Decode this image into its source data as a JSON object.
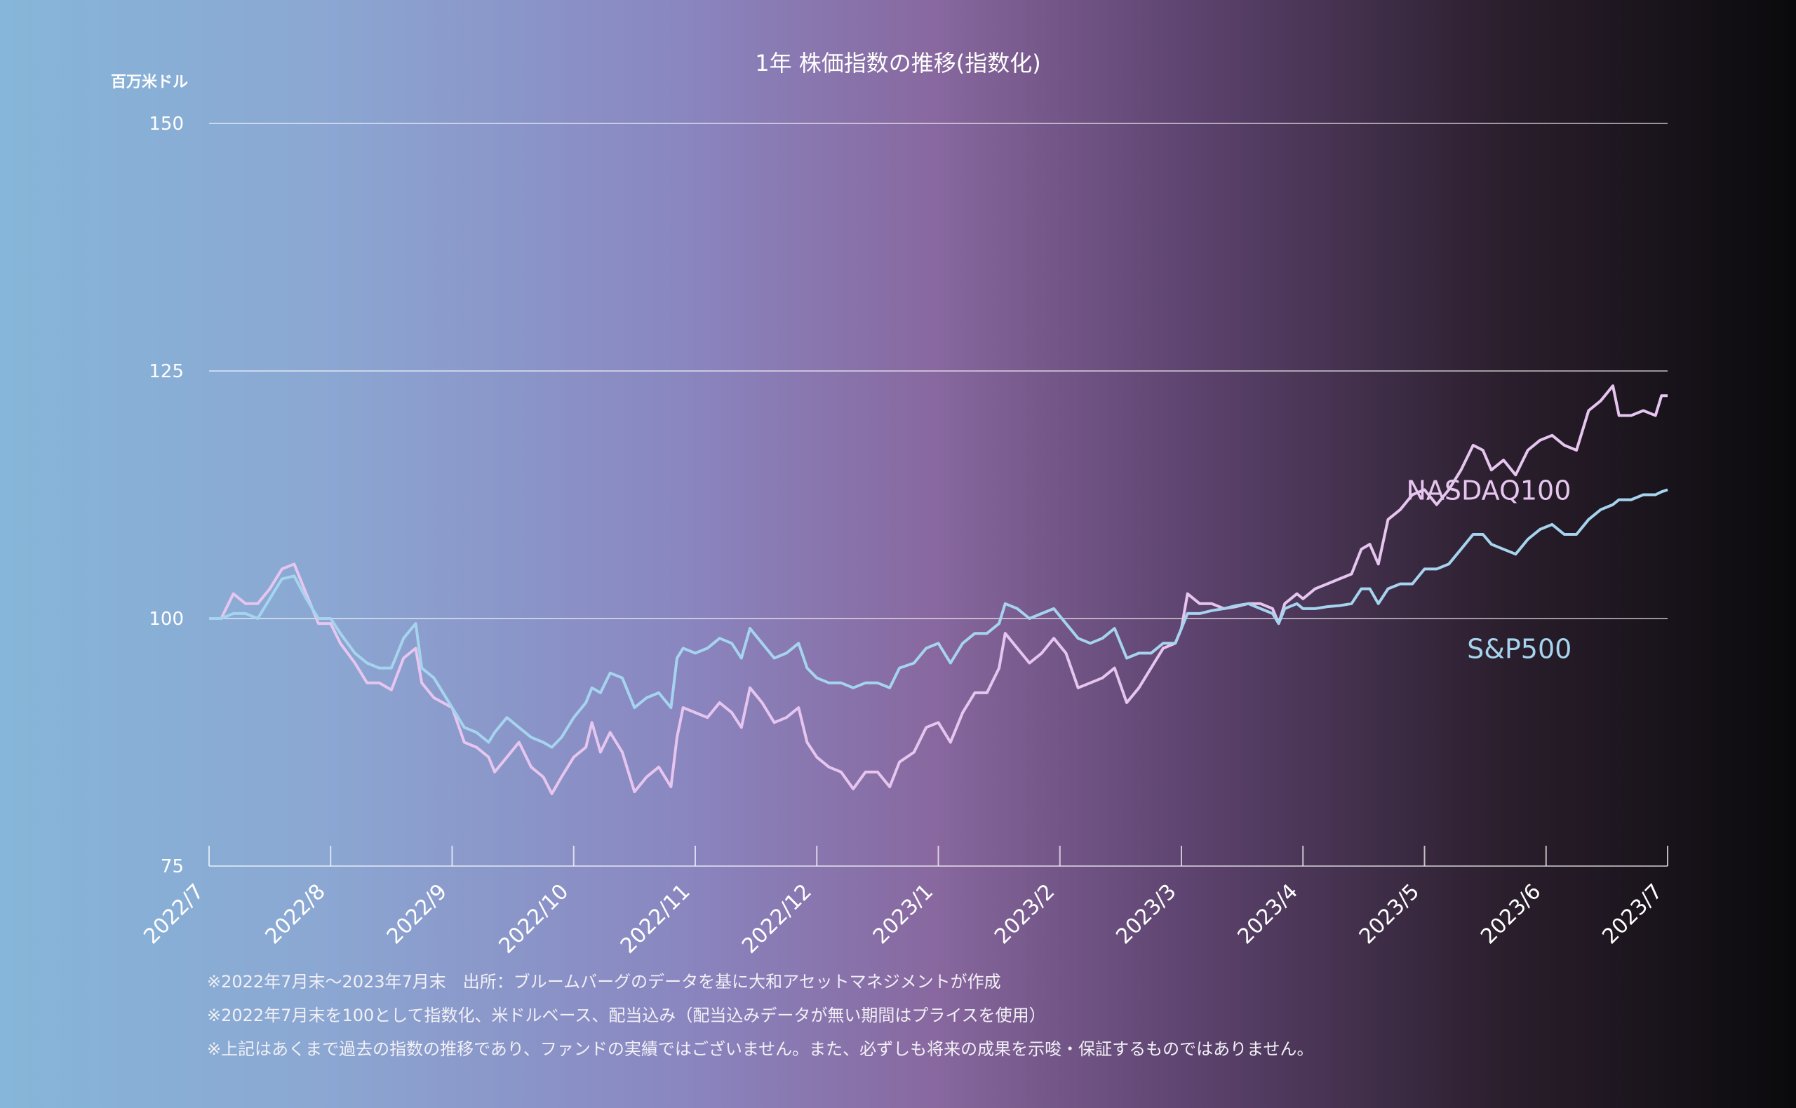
{
  "chart_data": {
    "type": "line",
    "title": "1年 株価指数の推移(指数化)",
    "ylabel": "百万米ドル",
    "ylim": [
      75,
      150
    ],
    "yticks": [
      "75",
      "100",
      "125",
      "150"
    ],
    "x_ticks": [
      "2022/7",
      "2022/8",
      "2022/9",
      "2022/10",
      "2022/11",
      "2022/12",
      "2023/1",
      "2023/2",
      "2023/3",
      "2023/4",
      "2023/5",
      "2023/6",
      "2023/7"
    ],
    "grid": true,
    "colors": {
      "NASDAQ100": "#e6c6ef",
      "S&P500": "#a6d4ee"
    },
    "series": [
      {
        "name": "NASDAQ100",
        "points": [
          [
            0.0,
            100
          ],
          [
            0.1,
            100
          ],
          [
            0.2,
            102.5
          ],
          [
            0.3,
            101.5
          ],
          [
            0.4,
            101.5
          ],
          [
            0.5,
            103
          ],
          [
            0.6,
            105
          ],
          [
            0.7,
            105.5
          ],
          [
            0.8,
            102.5
          ],
          [
            0.9,
            99.5
          ],
          [
            1.0,
            99.5
          ],
          [
            1.08,
            97.5
          ],
          [
            1.2,
            95.5
          ],
          [
            1.3,
            93.5
          ],
          [
            1.4,
            93.5
          ],
          [
            1.5,
            92.8
          ],
          [
            1.6,
            96
          ],
          [
            1.7,
            97
          ],
          [
            1.75,
            93.5
          ],
          [
            1.85,
            92
          ],
          [
            2.0,
            91
          ],
          [
            2.1,
            87.5
          ],
          [
            2.2,
            87
          ],
          [
            2.3,
            86
          ],
          [
            2.35,
            84.5
          ],
          [
            2.45,
            86
          ],
          [
            2.55,
            87.5
          ],
          [
            2.65,
            85
          ],
          [
            2.75,
            84
          ],
          [
            2.82,
            82.3
          ],
          [
            2.9,
            84
          ],
          [
            3.0,
            86
          ],
          [
            3.1,
            87
          ],
          [
            3.15,
            89.5
          ],
          [
            3.22,
            86.5
          ],
          [
            3.3,
            88.5
          ],
          [
            3.4,
            86.5
          ],
          [
            3.5,
            82.5
          ],
          [
            3.6,
            84
          ],
          [
            3.7,
            85
          ],
          [
            3.8,
            83
          ],
          [
            3.85,
            88
          ],
          [
            3.9,
            91
          ],
          [
            4.0,
            90.5
          ],
          [
            4.1,
            90
          ],
          [
            4.2,
            91.5
          ],
          [
            4.3,
            90.5
          ],
          [
            4.38,
            89
          ],
          [
            4.45,
            93
          ],
          [
            4.55,
            91.5
          ],
          [
            4.65,
            89.5
          ],
          [
            4.75,
            90
          ],
          [
            4.85,
            91
          ],
          [
            4.92,
            87.5
          ],
          [
            5.0,
            86
          ],
          [
            5.1,
            85
          ],
          [
            5.2,
            84.5
          ],
          [
            5.3,
            82.8
          ],
          [
            5.4,
            84.5
          ],
          [
            5.5,
            84.5
          ],
          [
            5.6,
            83
          ],
          [
            5.68,
            85.5
          ],
          [
            5.8,
            86.5
          ],
          [
            5.9,
            89
          ],
          [
            6.0,
            89.5
          ],
          [
            6.1,
            87.5
          ],
          [
            6.2,
            90.5
          ],
          [
            6.3,
            92.5
          ],
          [
            6.4,
            92.5
          ],
          [
            6.5,
            95
          ],
          [
            6.55,
            98.5
          ],
          [
            6.65,
            97
          ],
          [
            6.75,
            95.5
          ],
          [
            6.85,
            96.5
          ],
          [
            6.95,
            98
          ],
          [
            7.05,
            96.5
          ],
          [
            7.15,
            93
          ],
          [
            7.25,
            93.5
          ],
          [
            7.35,
            94
          ],
          [
            7.45,
            95
          ],
          [
            7.55,
            91.5
          ],
          [
            7.65,
            93
          ],
          [
            7.75,
            95
          ],
          [
            7.85,
            97
          ],
          [
            7.95,
            97.5
          ],
          [
            8.0,
            99
          ],
          [
            8.05,
            102.5
          ],
          [
            8.15,
            101.5
          ],
          [
            8.25,
            101.5
          ],
          [
            8.35,
            101
          ],
          [
            8.45,
            101.2
          ],
          [
            8.55,
            101.5
          ],
          [
            8.65,
            101.5
          ],
          [
            8.75,
            101
          ],
          [
            8.8,
            99.5
          ],
          [
            8.85,
            101.5
          ],
          [
            8.95,
            102.5
          ],
          [
            9.0,
            102
          ],
          [
            9.1,
            103
          ],
          [
            9.2,
            103.5
          ],
          [
            9.3,
            104
          ],
          [
            9.4,
            104.5
          ],
          [
            9.48,
            107
          ],
          [
            9.55,
            107.5
          ],
          [
            9.62,
            105.5
          ],
          [
            9.7,
            110
          ],
          [
            9.8,
            111
          ],
          [
            9.9,
            112.5
          ],
          [
            10.0,
            113
          ],
          [
            10.1,
            111.5
          ],
          [
            10.2,
            113
          ],
          [
            10.3,
            115
          ],
          [
            10.4,
            117.5
          ],
          [
            10.48,
            117
          ],
          [
            10.55,
            115
          ],
          [
            10.65,
            116
          ],
          [
            10.75,
            114.5
          ],
          [
            10.85,
            117
          ],
          [
            10.95,
            118
          ],
          [
            11.05,
            118.5
          ],
          [
            11.15,
            117.5
          ],
          [
            11.25,
            117
          ],
          [
            11.35,
            121
          ],
          [
            11.45,
            122
          ],
          [
            11.55,
            123.5
          ],
          [
            11.6,
            120.5
          ],
          [
            11.7,
            120.5
          ],
          [
            11.8,
            121
          ],
          [
            11.9,
            120.5
          ],
          [
            11.95,
            122.5
          ],
          [
            12.0,
            122.5
          ]
        ]
      },
      {
        "name": "S&P500",
        "points": [
          [
            0.0,
            100
          ],
          [
            0.1,
            100
          ],
          [
            0.2,
            100.5
          ],
          [
            0.3,
            100.5
          ],
          [
            0.4,
            100
          ],
          [
            0.5,
            102
          ],
          [
            0.6,
            104
          ],
          [
            0.7,
            104.3
          ],
          [
            0.8,
            102
          ],
          [
            0.9,
            100
          ],
          [
            1.0,
            100
          ],
          [
            1.08,
            98.5
          ],
          [
            1.2,
            96.5
          ],
          [
            1.3,
            95.5
          ],
          [
            1.4,
            95
          ],
          [
            1.5,
            95
          ],
          [
            1.6,
            98
          ],
          [
            1.7,
            99.5
          ],
          [
            1.75,
            95
          ],
          [
            1.85,
            94
          ],
          [
            2.0,
            91
          ],
          [
            2.1,
            89
          ],
          [
            2.2,
            88.5
          ],
          [
            2.3,
            87.5
          ],
          [
            2.35,
            88.5
          ],
          [
            2.45,
            90
          ],
          [
            2.55,
            89
          ],
          [
            2.65,
            88
          ],
          [
            2.75,
            87.5
          ],
          [
            2.82,
            87
          ],
          [
            2.9,
            88
          ],
          [
            3.0,
            90
          ],
          [
            3.1,
            91.5
          ],
          [
            3.15,
            93
          ],
          [
            3.22,
            92.5
          ],
          [
            3.3,
            94.5
          ],
          [
            3.4,
            94
          ],
          [
            3.5,
            91
          ],
          [
            3.6,
            92
          ],
          [
            3.7,
            92.5
          ],
          [
            3.8,
            91
          ],
          [
            3.85,
            96
          ],
          [
            3.9,
            97
          ],
          [
            4.0,
            96.5
          ],
          [
            4.1,
            97
          ],
          [
            4.2,
            98
          ],
          [
            4.3,
            97.5
          ],
          [
            4.38,
            96
          ],
          [
            4.45,
            99
          ],
          [
            4.55,
            97.5
          ],
          [
            4.65,
            96
          ],
          [
            4.75,
            96.5
          ],
          [
            4.85,
            97.5
          ],
          [
            4.92,
            95
          ],
          [
            5.0,
            94
          ],
          [
            5.1,
            93.5
          ],
          [
            5.2,
            93.5
          ],
          [
            5.3,
            93
          ],
          [
            5.4,
            93.5
          ],
          [
            5.5,
            93.5
          ],
          [
            5.6,
            93
          ],
          [
            5.68,
            95
          ],
          [
            5.8,
            95.5
          ],
          [
            5.9,
            97
          ],
          [
            6.0,
            97.5
          ],
          [
            6.1,
            95.5
          ],
          [
            6.2,
            97.5
          ],
          [
            6.3,
            98.5
          ],
          [
            6.4,
            98.5
          ],
          [
            6.5,
            99.5
          ],
          [
            6.55,
            101.5
          ],
          [
            6.65,
            101
          ],
          [
            6.75,
            100
          ],
          [
            6.85,
            100.5
          ],
          [
            6.95,
            101
          ],
          [
            7.05,
            99.5
          ],
          [
            7.15,
            98
          ],
          [
            7.25,
            97.5
          ],
          [
            7.35,
            98
          ],
          [
            7.45,
            99
          ],
          [
            7.55,
            96
          ],
          [
            7.65,
            96.5
          ],
          [
            7.75,
            96.5
          ],
          [
            7.85,
            97.5
          ],
          [
            7.95,
            97.5
          ],
          [
            8.0,
            99
          ],
          [
            8.05,
            100.5
          ],
          [
            8.15,
            100.5
          ],
          [
            8.25,
            100.8
          ],
          [
            8.35,
            101
          ],
          [
            8.45,
            101.3
          ],
          [
            8.55,
            101.5
          ],
          [
            8.65,
            101
          ],
          [
            8.75,
            100.5
          ],
          [
            8.8,
            99.5
          ],
          [
            8.85,
            101
          ],
          [
            8.95,
            101.5
          ],
          [
            9.0,
            101
          ],
          [
            9.1,
            101
          ],
          [
            9.2,
            101.2
          ],
          [
            9.3,
            101.3
          ],
          [
            9.4,
            101.5
          ],
          [
            9.48,
            103
          ],
          [
            9.55,
            103
          ],
          [
            9.62,
            101.5
          ],
          [
            9.7,
            103
          ],
          [
            9.8,
            103.5
          ],
          [
            9.9,
            103.5
          ],
          [
            10.0,
            105
          ],
          [
            10.1,
            105
          ],
          [
            10.2,
            105.5
          ],
          [
            10.3,
            107
          ],
          [
            10.4,
            108.5
          ],
          [
            10.48,
            108.5
          ],
          [
            10.55,
            107.5
          ],
          [
            10.65,
            107
          ],
          [
            10.75,
            106.5
          ],
          [
            10.85,
            108
          ],
          [
            10.95,
            109
          ],
          [
            11.05,
            109.5
          ],
          [
            11.15,
            108.5
          ],
          [
            11.25,
            108.5
          ],
          [
            11.35,
            110
          ],
          [
            11.45,
            111
          ],
          [
            11.55,
            111.5
          ],
          [
            11.6,
            112
          ],
          [
            11.7,
            112
          ],
          [
            11.8,
            112.5
          ],
          [
            11.9,
            112.5
          ],
          [
            11.95,
            112.8
          ],
          [
            12.0,
            113
          ]
        ]
      }
    ],
    "annotations": [
      {
        "text": "NASDAQ100",
        "x": 9.85,
        "y": 112,
        "series": "NASDAQ100"
      },
      {
        "text": "S&P500",
        "x": 10.35,
        "y": 96,
        "series": "S&P500"
      }
    ]
  },
  "notes": [
    "※2022年7月末〜2023年7月末　出所：ブルームバーグのデータを基に大和アセットマネジメントが作成",
    "※2022年7月末を100として指数化、米ドルベース、配当込み（配当込みデータが無い期間はプライスを使用）",
    "※上記はあくまで過去の指数の推移であり、ファンドの実績ではございません。また、必ずしも将来の成果を示唆・保証するものではありません。"
  ]
}
